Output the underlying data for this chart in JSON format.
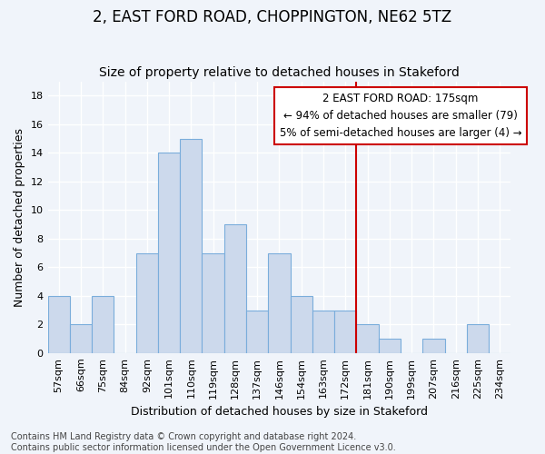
{
  "title": "2, EAST FORD ROAD, CHOPPINGTON, NE62 5TZ",
  "subtitle": "Size of property relative to detached houses in Stakeford",
  "xlabel": "Distribution of detached houses by size in Stakeford",
  "ylabel": "Number of detached properties",
  "bar_labels": [
    "57sqm",
    "66sqm",
    "75sqm",
    "84sqm",
    "92sqm",
    "101sqm",
    "110sqm",
    "119sqm",
    "128sqm",
    "137sqm",
    "146sqm",
    "154sqm",
    "163sqm",
    "172sqm",
    "181sqm",
    "190sqm",
    "199sqm",
    "207sqm",
    "216sqm",
    "225sqm",
    "234sqm"
  ],
  "bar_values": [
    4,
    2,
    4,
    0,
    7,
    14,
    15,
    7,
    9,
    3,
    7,
    4,
    3,
    3,
    2,
    1,
    0,
    1,
    0,
    2,
    0
  ],
  "bar_color": "#ccd9ec",
  "bar_edge_color": "#7aaddb",
  "ylim": [
    0,
    19
  ],
  "yticks": [
    0,
    2,
    4,
    6,
    8,
    10,
    12,
    14,
    16,
    18
  ],
  "vline_color": "#cc0000",
  "annotation_text": "2 EAST FORD ROAD: 175sqm\n← 94% of detached houses are smaller (79)\n5% of semi-detached houses are larger (4) →",
  "annotation_box_color": "#cc0000",
  "footer_line1": "Contains HM Land Registry data © Crown copyright and database right 2024.",
  "footer_line2": "Contains public sector information licensed under the Open Government Licence v3.0.",
  "bg_color": "#f0f4fa",
  "plot_bg_color": "#f0f4fa",
  "grid_color": "#ffffff",
  "title_fontsize": 12,
  "subtitle_fontsize": 10,
  "label_fontsize": 9,
  "tick_fontsize": 8,
  "footer_fontsize": 7
}
